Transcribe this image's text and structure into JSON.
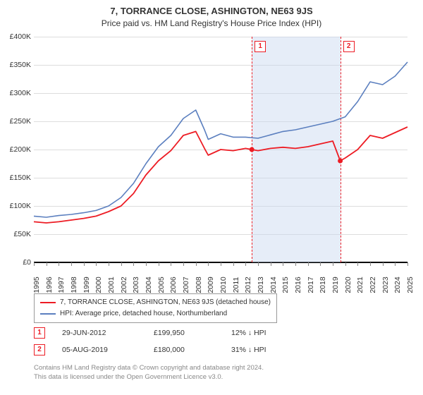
{
  "title": "7, TORRANCE CLOSE, ASHINGTON, NE63 9JS",
  "subtitle": "Price paid vs. HM Land Registry's House Price Index (HPI)",
  "chart": {
    "type": "line",
    "background_color": "#ffffff",
    "grid_color": "#dddddd",
    "axis_color": "#000000",
    "tick_color": "#888888",
    "y": {
      "min": 0,
      "max": 400000,
      "step": 50000,
      "labels": [
        "£0",
        "£50K",
        "£100K",
        "£150K",
        "£200K",
        "£250K",
        "£300K",
        "£350K",
        "£400K"
      ],
      "label_fontsize": 10.5
    },
    "x": {
      "min": 1995,
      "max": 2025,
      "ticks": [
        1995,
        1996,
        1997,
        1998,
        1999,
        2000,
        2001,
        2002,
        2003,
        2004,
        2005,
        2006,
        2007,
        2008,
        2009,
        2010,
        2011,
        2012,
        2013,
        2014,
        2015,
        2016,
        2017,
        2018,
        2019,
        2020,
        2021,
        2022,
        2023,
        2024,
        2025
      ],
      "label_fontsize": 10.5
    },
    "shaded_region": {
      "from": 2012.5,
      "to": 2019.6,
      "color": "rgba(200,215,240,0.45)"
    },
    "sale_lines": [
      {
        "x": 2012.5,
        "badge": "1",
        "color": "#ed1c24"
      },
      {
        "x": 2019.6,
        "badge": "2",
        "color": "#ed1c24"
      }
    ],
    "series": [
      {
        "name": "hpi",
        "color": "#5b7fbf",
        "line_width": 1.6,
        "points": [
          [
            1995,
            82
          ],
          [
            1996,
            80
          ],
          [
            1997,
            83
          ],
          [
            1998,
            85
          ],
          [
            1999,
            88
          ],
          [
            2000,
            92
          ],
          [
            2001,
            100
          ],
          [
            2002,
            115
          ],
          [
            2003,
            140
          ],
          [
            2004,
            175
          ],
          [
            2005,
            205
          ],
          [
            2006,
            225
          ],
          [
            2007,
            255
          ],
          [
            2008,
            270
          ],
          [
            2008.7,
            235
          ],
          [
            2009,
            218
          ],
          [
            2010,
            228
          ],
          [
            2011,
            222
          ],
          [
            2012,
            222
          ],
          [
            2013,
            220
          ],
          [
            2014,
            226
          ],
          [
            2015,
            232
          ],
          [
            2016,
            235
          ],
          [
            2017,
            240
          ],
          [
            2018,
            245
          ],
          [
            2019,
            250
          ],
          [
            2020,
            258
          ],
          [
            2021,
            285
          ],
          [
            2022,
            320
          ],
          [
            2023,
            315
          ],
          [
            2024,
            330
          ],
          [
            2025,
            355
          ]
        ]
      },
      {
        "name": "price_paid",
        "color": "#ed1c24",
        "line_width": 1.8,
        "points": [
          [
            1995,
            72
          ],
          [
            1996,
            70
          ],
          [
            1997,
            72
          ],
          [
            1998,
            75
          ],
          [
            1999,
            78
          ],
          [
            2000,
            82
          ],
          [
            2001,
            90
          ],
          [
            2002,
            100
          ],
          [
            2003,
            122
          ],
          [
            2004,
            155
          ],
          [
            2005,
            180
          ],
          [
            2006,
            198
          ],
          [
            2007,
            225
          ],
          [
            2008,
            232
          ],
          [
            2008.7,
            202
          ],
          [
            2009,
            190
          ],
          [
            2010,
            200
          ],
          [
            2011,
            198
          ],
          [
            2012,
            202
          ],
          [
            2012.5,
            200
          ],
          [
            2013,
            198
          ],
          [
            2014,
            202
          ],
          [
            2015,
            204
          ],
          [
            2016,
            202
          ],
          [
            2017,
            205
          ],
          [
            2018,
            210
          ],
          [
            2019,
            215
          ],
          [
            2019.6,
            180
          ],
          [
            2020,
            185
          ],
          [
            2021,
            200
          ],
          [
            2022,
            225
          ],
          [
            2023,
            220
          ],
          [
            2024,
            230
          ],
          [
            2025,
            240
          ]
        ]
      }
    ],
    "markers": [
      {
        "x": 2012.5,
        "y": 200,
        "color": "#ed1c24",
        "r": 3.5
      },
      {
        "x": 2019.6,
        "y": 180,
        "color": "#ed1c24",
        "r": 3.5
      }
    ]
  },
  "legend": {
    "border_color": "#999999",
    "items": [
      {
        "label": "7, TORRANCE CLOSE, ASHINGTON, NE63 9JS (detached house)",
        "color": "#ed1c24"
      },
      {
        "label": "HPI: Average price, detached house, Northumberland",
        "color": "#5b7fbf"
      }
    ]
  },
  "sales": [
    {
      "idx": "1",
      "date": "29-JUN-2012",
      "price": "£199,950",
      "hpi": "12% ↓ HPI"
    },
    {
      "idx": "2",
      "date": "05-AUG-2019",
      "price": "£180,000",
      "hpi": "31% ↓ HPI"
    }
  ],
  "footnote": {
    "line1": "Contains HM Land Registry data © Crown copyright and database right 2024.",
    "line2": "This data is licensed under the Open Government Licence v3.0."
  }
}
